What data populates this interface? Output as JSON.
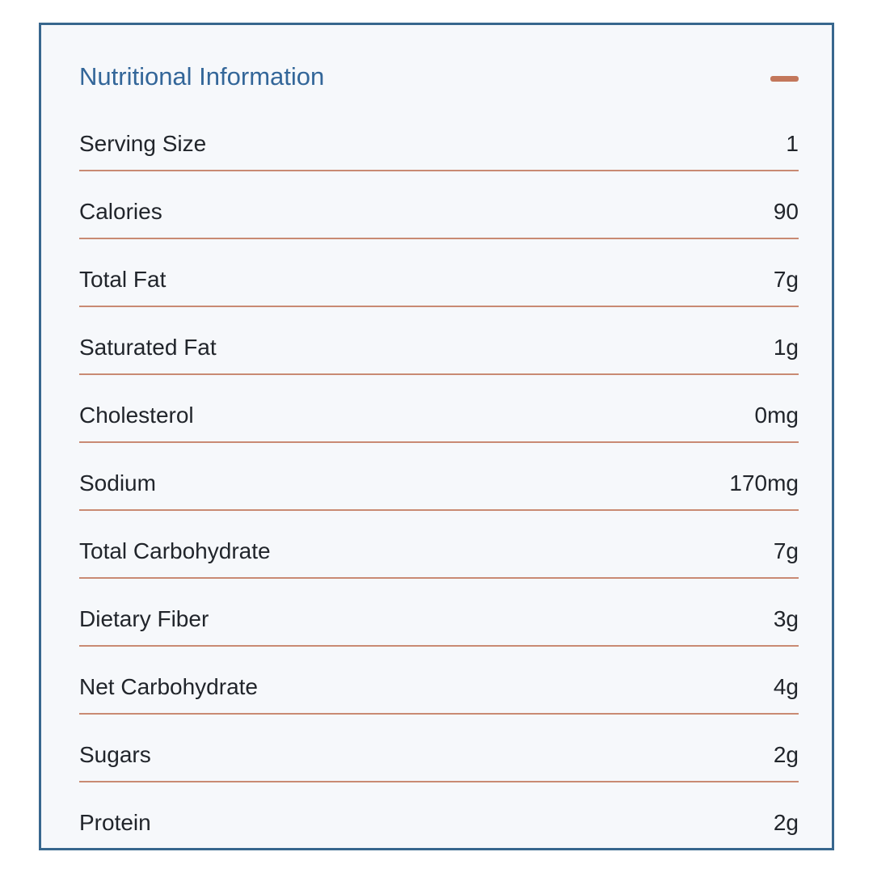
{
  "panel": {
    "title": "Nutritional Information",
    "collapse_icon": "minus-icon",
    "state": "expanded",
    "colors": {
      "border": "#38678e",
      "panel_bg": "#f6f8fb",
      "title": "#336699",
      "text": "#21252b",
      "divider": "#c98a73",
      "dash": "#c3775b"
    },
    "rows": [
      {
        "label": "Serving Size",
        "value": "1"
      },
      {
        "label": "Calories",
        "value": "90"
      },
      {
        "label": "Total Fat",
        "value": "7g"
      },
      {
        "label": "Saturated Fat",
        "value": "1g"
      },
      {
        "label": "Cholesterol",
        "value": "0mg"
      },
      {
        "label": "Sodium",
        "value": "170mg"
      },
      {
        "label": "Total Carbohydrate",
        "value": "7g"
      },
      {
        "label": "Dietary Fiber",
        "value": "3g"
      },
      {
        "label": "Net Carbohydrate",
        "value": "4g"
      },
      {
        "label": "Sugars",
        "value": "2g"
      },
      {
        "label": "Protein",
        "value": "2g"
      }
    ]
  }
}
